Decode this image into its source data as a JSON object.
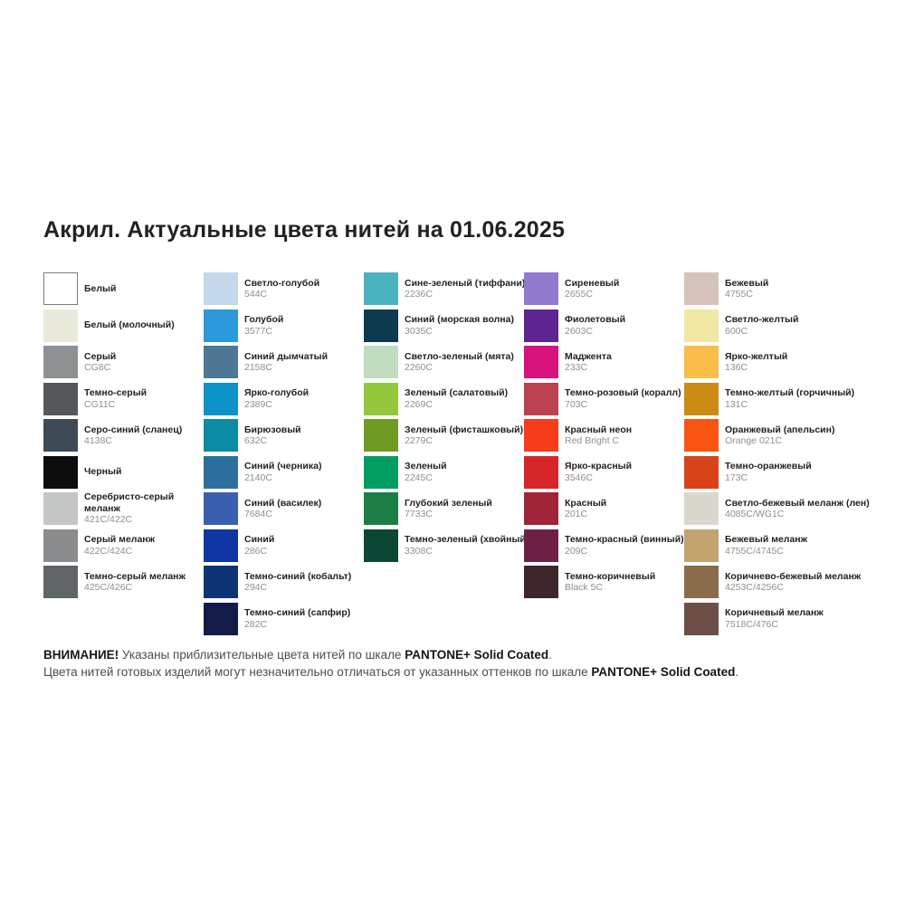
{
  "title": "Акрил. Актуальные цвета нитей на 01.06.2025",
  "footnote": {
    "line1": {
      "bold1": "ВНИМАНИЕ!",
      "text1": " Указаны приблизительные цвета нитей по шкале ",
      "bold2": "PANTONE+ Solid Coated",
      "text2": "."
    },
    "line2": {
      "text1": "Цвета нитей готовых изделий могут незначительно отличаться от указанных оттенков по шкале ",
      "bold1": "PANTONE+ Solid Coated",
      "text2": "."
    }
  },
  "columns": [
    {
      "items": [
        {
          "name": "Белый",
          "code": "",
          "color": "#ffffff",
          "border": true
        },
        {
          "name": "Белый (молочный)",
          "code": "",
          "color": "#e9ead9"
        },
        {
          "name": "Серый",
          "code": "CG8C",
          "color": "#8e9192"
        },
        {
          "name": "Темно-серый",
          "code": "CG11C",
          "color": "#54585b"
        },
        {
          "name": "Серо-синий (сланец)",
          "code": "4138C",
          "color": "#3f4a57"
        },
        {
          "name": "Черный",
          "code": "",
          "color": "#0c0c0c"
        },
        {
          "name": "Серебристо-серый\nмеланж",
          "code": "421C/422C",
          "color": "#c4c6c5"
        },
        {
          "name": "Серый меланж",
          "code": "422C/424C",
          "color": "#8a8c8d"
        },
        {
          "name": "Темно-серый меланж",
          "code": "425C/426C",
          "color": "#5f6466"
        }
      ]
    },
    {
      "items": [
        {
          "name": "Светло-голубой",
          "code": "544C",
          "color": "#c5d8eb"
        },
        {
          "name": "Голубой",
          "code": "3577C",
          "color": "#2b99db"
        },
        {
          "name": "Синий дымчатый",
          "code": "2158C",
          "color": "#4f7694"
        },
        {
          "name": "Ярко-голубой",
          "code": "2389C",
          "color": "#0d93c9"
        },
        {
          "name": "Бирюзовый",
          "code": "632C",
          "color": "#0b8ba4"
        },
        {
          "name": "Синий (черника)",
          "code": "2140C",
          "color": "#2c6f9d"
        },
        {
          "name": "Синий (василек)",
          "code": "7684C",
          "color": "#3a5fae"
        },
        {
          "name": "Синий",
          "code": "286C",
          "color": "#0f35a5"
        },
        {
          "name": "Темно-синий (кобальт)",
          "code": "294C",
          "color": "#0e3475"
        },
        {
          "name": "Темно-синий (сапфир)",
          "code": "282C",
          "color": "#131c49"
        }
      ]
    },
    {
      "items": [
        {
          "name": "Сине-зеленый (тиффани)",
          "code": "2236C",
          "color": "#4ab3c0"
        },
        {
          "name": "Синий (морская волна)",
          "code": "3035C",
          "color": "#0e3a50"
        },
        {
          "name": "Светло-зеленый (мята)",
          "code": "2260C",
          "color": "#c1dcc1"
        },
        {
          "name": "Зеленый (салатовый)",
          "code": "2269C",
          "color": "#93c83d"
        },
        {
          "name": "Зеленый (фисташковый)",
          "code": "2279C",
          "color": "#6f9a23"
        },
        {
          "name": "Зеленый",
          "code": "2245C",
          "color": "#009d62"
        },
        {
          "name": "Глубокий зеленый",
          "code": "7733C",
          "color": "#1d7e45"
        },
        {
          "name": "Темно-зеленый (хвойный)",
          "code": "3308C",
          "color": "#0c4736"
        }
      ]
    },
    {
      "items": [
        {
          "name": "Сиреневый",
          "code": "2655C",
          "color": "#8f7ace"
        },
        {
          "name": "Фиолетовый",
          "code": "2603C",
          "color": "#5e2590"
        },
        {
          "name": "Маджента",
          "code": "233C",
          "color": "#d8127d"
        },
        {
          "name": "Темно-розовый (коралл)",
          "code": "703C",
          "color": "#bc4251"
        },
        {
          "name": "Красный неон",
          "code": "Red Bright C",
          "color": "#f63c1a"
        },
        {
          "name": "Ярко-красный",
          "code": "3546C",
          "color": "#d6262b"
        },
        {
          "name": "Красный",
          "code": "201C",
          "color": "#9e2437"
        },
        {
          "name": "Темно-красный (винный)",
          "code": "209C",
          "color": "#6d2044"
        },
        {
          "name": "Темно-коричневый",
          "code": "Black 5C",
          "color": "#3d272d"
        }
      ]
    },
    {
      "items": [
        {
          "name": "Бежевый",
          "code": "4755C",
          "color": "#d5c2bb"
        },
        {
          "name": "Светло-желтый",
          "code": "600C",
          "color": "#f1e9a3"
        },
        {
          "name": "Ярко-желтый",
          "code": "136C",
          "color": "#fbbd4a"
        },
        {
          "name": "Темно-желтый (горчичный)",
          "code": "131C",
          "color": "#ca8c15"
        },
        {
          "name": "Оранжевый (апельсин)",
          "code": "Orange 021C",
          "color": "#f85513"
        },
        {
          "name": "Темно-оранжевый",
          "code": "173C",
          "color": "#d8431b"
        },
        {
          "name": "Светло-бежевый меланж (лен)",
          "code": "4085C/WG1C",
          "color": "#dad7cf"
        },
        {
          "name": "Бежевый меланж",
          "code": "4755C/4745C",
          "color": "#c2a470"
        },
        {
          "name": "Коричнево-бежевый меланж",
          "code": "4253C/4256C",
          "color": "#8a6b4a"
        },
        {
          "name": "Коричневый меланж",
          "code": "7518C/476C",
          "color": "#6e4f48"
        }
      ]
    }
  ]
}
